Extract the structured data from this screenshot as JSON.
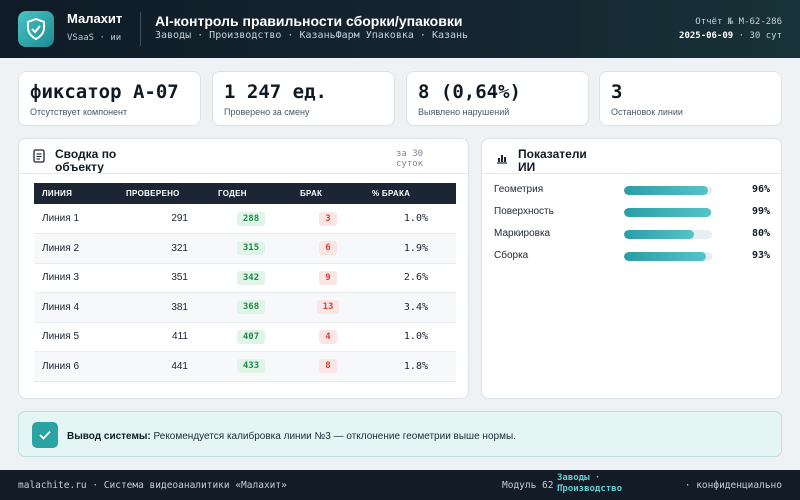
{
  "header": {
    "brand": "Малахит",
    "brand_sub": "VSaaS · ии",
    "title": "AI-контроль правильности сборки/упаковки",
    "breadcrumbs": "Заводы · Производство · КазаньФарм Упаковка · Казань",
    "report_no": "Отчёт № М-62-286",
    "report_date": "2025-06-09",
    "report_period": "· 30 сут"
  },
  "kpis": [
    {
      "value": "фиксатор А-07",
      "label": "Отсутствует компонент"
    },
    {
      "value": "1 247 ед.",
      "label": "Проверено за смену"
    },
    {
      "value": "8 (0,64%)",
      "label": "Выявлено нарушений"
    },
    {
      "value": "3",
      "label": "Остановок линии"
    }
  ],
  "summary": {
    "title": "Сводка по объекту",
    "period": "за 30 суток",
    "columns": [
      "ЛИНИЯ",
      "ПРОВЕРЕНО",
      "ГОДЕН",
      "БРАК",
      "% БРАКА"
    ],
    "rows": [
      {
        "line": "Линия 1",
        "checked": "291",
        "good": "288",
        "defect": "3",
        "pct": "1.0%"
      },
      {
        "line": "Линия 2",
        "checked": "321",
        "good": "315",
        "defect": "6",
        "pct": "1.9%"
      },
      {
        "line": "Линия 3",
        "checked": "351",
        "good": "342",
        "defect": "9",
        "pct": "2.6%"
      },
      {
        "line": "Линия 4",
        "checked": "381",
        "good": "368",
        "defect": "13",
        "pct": "3.4%"
      },
      {
        "line": "Линия 5",
        "checked": "411",
        "good": "407",
        "defect": "4",
        "pct": "1.0%"
      },
      {
        "line": "Линия 6",
        "checked": "441",
        "good": "433",
        "defect": "8",
        "pct": "1.8%"
      }
    ]
  },
  "ai_metrics": {
    "title": "Показатели ИИ",
    "items": [
      {
        "label": "Геометрия",
        "value": 96,
        "text": "96%"
      },
      {
        "label": "Поверхность",
        "value": 99,
        "text": "99%"
      },
      {
        "label": "Маркировка",
        "value": 80,
        "text": "80%"
      },
      {
        "label": "Сборка",
        "value": 93,
        "text": "93%"
      }
    ]
  },
  "conclusion": {
    "label": "Вывод системы:",
    "text": "Рекомендуется калибровка линии №3 — отклонение геометрии выше нормы."
  },
  "footer": {
    "left": "malachite.ru · Система видеоаналитики «Малахит»",
    "module": "Модуль 62 ·",
    "tags": "Заводы · Производство",
    "right": "· конфиденциально"
  },
  "colors": {
    "accent": "#2aa3a3",
    "header_bg": "#0f1c27",
    "good": "#1f8a4a",
    "bad": "#d2453b"
  }
}
